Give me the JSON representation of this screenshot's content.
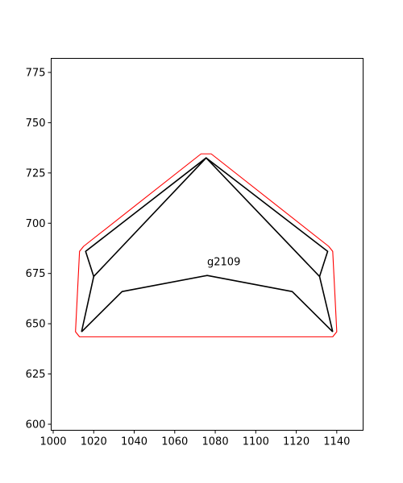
{
  "chart_data": {
    "type": "line",
    "title": "",
    "xlabel": "",
    "ylabel": "",
    "xlim": [
      999,
      1153
    ],
    "ylim": [
      597,
      782
    ],
    "xticks": [
      1000,
      1020,
      1040,
      1060,
      1080,
      1100,
      1120,
      1140
    ],
    "yticks": [
      600,
      625,
      650,
      675,
      700,
      725,
      750,
      775
    ],
    "xtick_labels": [
      "1000",
      "1020",
      "1040",
      "1060",
      "1080",
      "1100",
      "1120",
      "1140"
    ],
    "ytick_labels": [
      "600",
      "625",
      "650",
      "675",
      "700",
      "725",
      "750",
      "775"
    ],
    "grid": false,
    "annotations": [
      {
        "text": "g2109",
        "x": 1076,
        "y": 679
      }
    ],
    "series": [
      {
        "color": "#ff0000",
        "closed": true,
        "x": [
          1013,
          1138,
          1140,
          1138,
          1136,
          1078,
          1073,
          1015,
          1013,
          1011
        ],
        "y": [
          643.5,
          643.5,
          646,
          686,
          688.5,
          734.5,
          734.5,
          688.5,
          686,
          646
        ]
      },
      {
        "color": "#000000",
        "closed": false,
        "x": [
          1014,
          1020,
          1075.5,
          1131.5,
          1138
        ],
        "y": [
          646,
          673.5,
          732.5,
          673.5,
          646
        ]
      },
      {
        "color": "#000000",
        "closed": false,
        "x": [
          1014,
          1034,
          1076,
          1118,
          1138
        ],
        "y": [
          646,
          666,
          674,
          666,
          646
        ]
      },
      {
        "color": "#000000",
        "closed": false,
        "x": [
          1020,
          1016,
          1075.5,
          1135.5,
          1131.5
        ],
        "y": [
          673.5,
          686,
          732.5,
          686,
          673.5
        ]
      }
    ]
  }
}
